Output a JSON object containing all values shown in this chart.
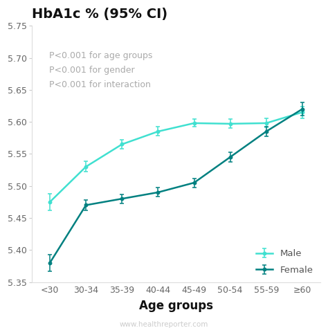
{
  "title": "HbA1c % (95% CI)",
  "xlabel": "Age groups",
  "watermark": "www.healthreporter.com",
  "annotation": "P<0.001 for age groups\nP<0.001 for gender\nP<0.001 for interaction",
  "x_labels": [
    "<30",
    "30-34",
    "35-39",
    "40-44",
    "45-49",
    "50-54",
    "55-59",
    "≥60"
  ],
  "female_values": [
    5.38,
    5.47,
    5.48,
    5.49,
    5.505,
    5.545,
    5.585,
    5.62
  ],
  "female_err": [
    0.013,
    0.008,
    0.007,
    0.007,
    0.007,
    0.008,
    0.008,
    0.01
  ],
  "male_values": [
    5.475,
    5.53,
    5.565,
    5.585,
    5.598,
    5.597,
    5.598,
    5.615
  ],
  "male_err": [
    0.013,
    0.008,
    0.007,
    0.007,
    0.006,
    0.007,
    0.007,
    0.009
  ],
  "female_color": "#008080",
  "male_color": "#40e0d0",
  "ylim": [
    5.35,
    5.75
  ],
  "yticks": [
    5.35,
    5.4,
    5.45,
    5.5,
    5.55,
    5.6,
    5.65,
    5.7,
    5.75
  ],
  "bg_color": "#ffffff",
  "title_fontsize": 14,
  "xlabel_fontsize": 12,
  "tick_fontsize": 9,
  "annotation_color": "#aaaaaa",
  "annotation_fontsize": 9,
  "watermark_fontsize": 7.5,
  "watermark_color": "#cccccc",
  "legend_fontsize": 9.5
}
